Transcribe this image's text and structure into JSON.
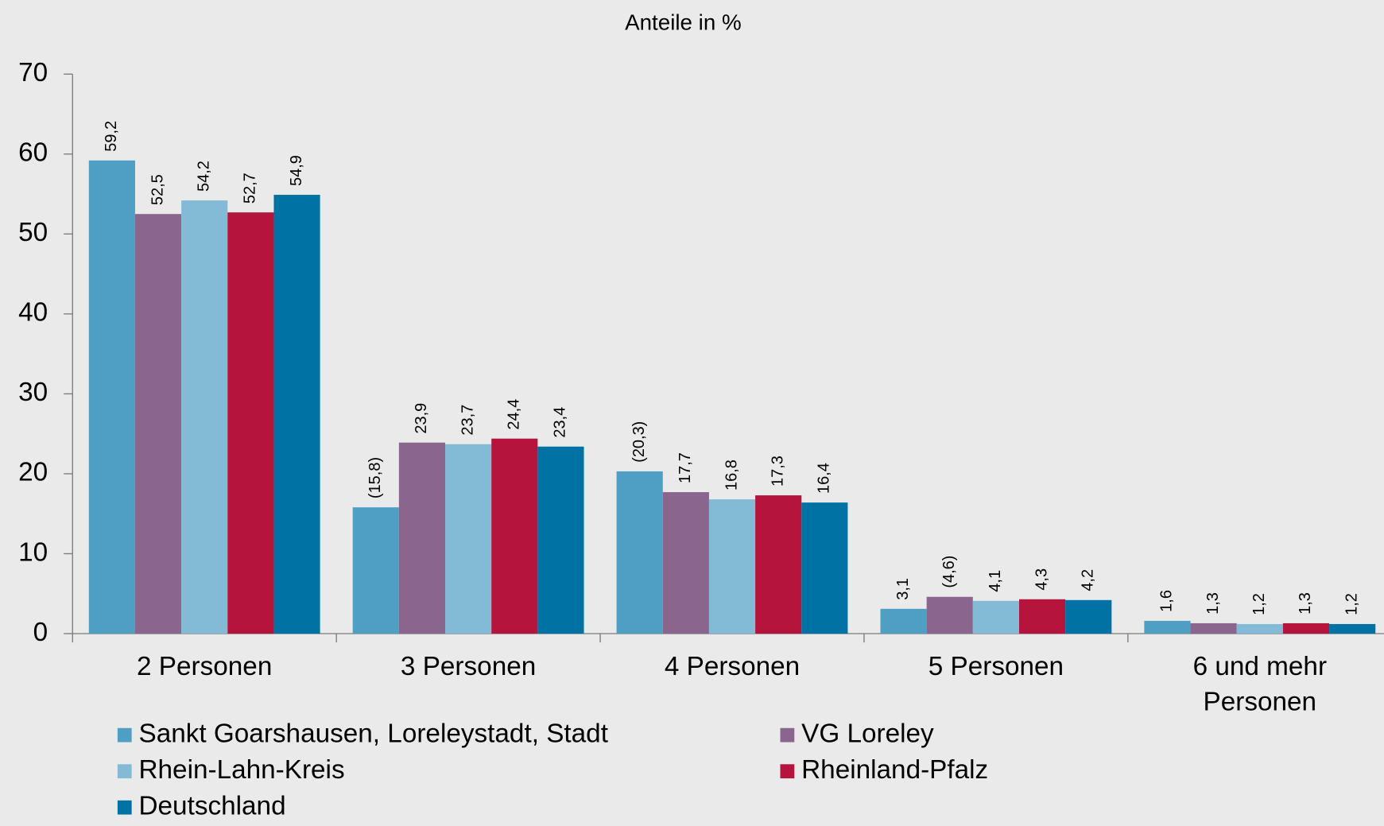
{
  "chart_data": {
    "type": "bar",
    "title": "Anteile in %",
    "categories": [
      "2 Personen",
      "3 Personen",
      "4 Personen",
      "5 Personen",
      "6 und mehr Personen"
    ],
    "series": [
      {
        "name": "Sankt Goarshausen, Loreleystadt, Stadt",
        "color": "#4f9ec4",
        "values": [
          59.2,
          15.8,
          20.3,
          3.1,
          1.6
        ],
        "value_labels": [
          "59,2",
          "(15,8)",
          "(20,3)",
          "3,1",
          "1,6"
        ]
      },
      {
        "name": "VG Loreley",
        "color": "#8a658d",
        "values": [
          52.5,
          23.9,
          17.7,
          4.6,
          1.3
        ],
        "value_labels": [
          "52,5",
          "23,9",
          "17,7",
          "(4,6)",
          "1,3"
        ]
      },
      {
        "name": "Rhein-Lahn-Kreis",
        "color": "#83bbd6",
        "values": [
          54.2,
          23.7,
          16.8,
          4.1,
          1.2
        ],
        "value_labels": [
          "54,2",
          "23,7",
          "16,8",
          "4,1",
          "1,2"
        ]
      },
      {
        "name": "Rheinland-Pfalz",
        "color": "#b5143c",
        "values": [
          52.7,
          24.4,
          17.3,
          4.3,
          1.3
        ],
        "value_labels": [
          "52,7",
          "24,4",
          "17,3",
          "4,3",
          "1,3"
        ]
      },
      {
        "name": "Deutschland",
        "color": "#0072a4",
        "values": [
          54.9,
          23.4,
          16.4,
          4.2,
          1.2
        ],
        "value_labels": [
          "54,9",
          "23,4",
          "16,4",
          "4,2",
          "1,2"
        ]
      }
    ],
    "ylim": [
      0,
      70
    ],
    "yticks": [
      0,
      10,
      20,
      30,
      40,
      50,
      60,
      70
    ],
    "grid": false,
    "legend": "bottom"
  }
}
